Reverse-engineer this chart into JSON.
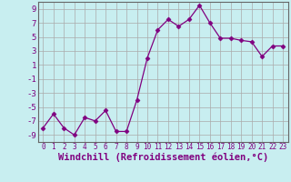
{
  "x": [
    0,
    1,
    2,
    3,
    4,
    5,
    6,
    7,
    8,
    9,
    10,
    11,
    12,
    13,
    14,
    15,
    16,
    17,
    18,
    19,
    20,
    21,
    22,
    23
  ],
  "y": [
    -8,
    -6,
    -8,
    -9,
    -6.5,
    -7,
    -5.5,
    -8.5,
    -8.5,
    -4,
    2,
    6,
    7.5,
    6.5,
    7.5,
    9.5,
    7,
    4.8,
    4.8,
    4.5,
    4.3,
    2.2,
    3.7,
    3.7
  ],
  "line_color": "#800080",
  "marker": "D",
  "marker_size": 2.5,
  "bg_color": "#c8eef0",
  "grid_color": "#aaaaaa",
  "xlabel": "Windchill (Refroidissement éolien,°C)",
  "xlabel_color": "#800080",
  "ylim": [
    -10,
    10
  ],
  "yticks": [
    -9,
    -7,
    -5,
    -3,
    -1,
    1,
    3,
    5,
    7,
    9
  ],
  "xticks": [
    0,
    1,
    2,
    3,
    4,
    5,
    6,
    7,
    8,
    9,
    10,
    11,
    12,
    13,
    14,
    15,
    16,
    17,
    18,
    19,
    20,
    21,
    22,
    23
  ],
  "tick_labelsize": 5.5,
  "xlabel_fontsize": 7.5,
  "ytick_labelsize": 6.5
}
